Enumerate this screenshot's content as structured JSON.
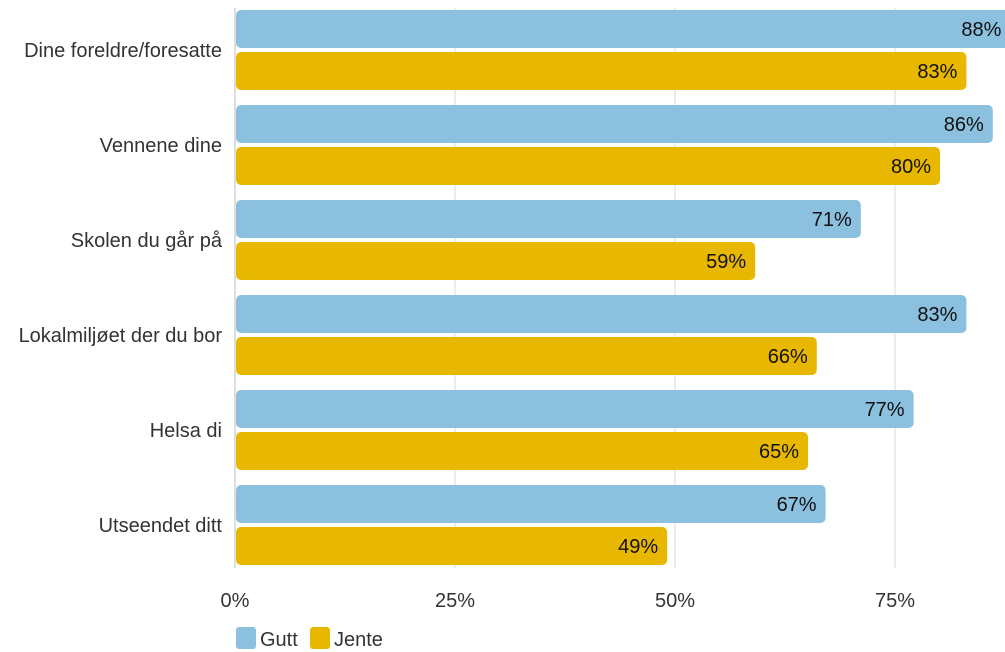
{
  "chart_data": {
    "type": "bar",
    "orientation": "horizontal",
    "categories": [
      "Dine foreldre/foresatte",
      "Vennene dine",
      "Skolen du går på",
      "Lokalmiljøet der du bor",
      "Helsa di",
      "Utseendet ditt"
    ],
    "series": [
      {
        "name": "Gutt",
        "color": "#8bc0de",
        "values": [
          88,
          86,
          71,
          83,
          77,
          67
        ],
        "labels": [
          "88%",
          "86%",
          "71%",
          "83%",
          "77%",
          "67%"
        ]
      },
      {
        "name": "Jente",
        "color": "#e8b800",
        "values": [
          83,
          80,
          59,
          66,
          65,
          49
        ],
        "labels": [
          "83%",
          "80%",
          "59%",
          "66%",
          "65%",
          "49%"
        ]
      }
    ],
    "x_ticks": [
      0,
      25,
      50,
      75
    ],
    "x_tick_labels": [
      "0%",
      "25%",
      "50%",
      "75%"
    ],
    "xlim": [
      0,
      100
    ],
    "grid": true,
    "legend_position": "bottom-left"
  }
}
